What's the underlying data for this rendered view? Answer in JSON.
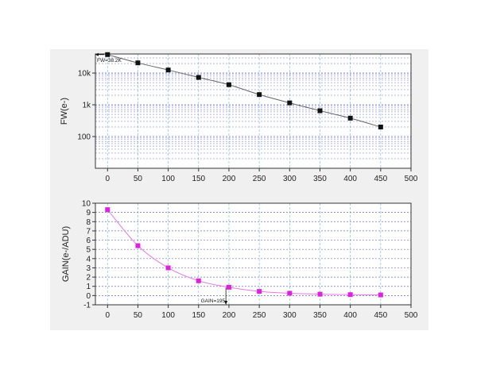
{
  "chart_data": [
    {
      "type": "line",
      "scale": "log",
      "ylabel": "FW(e-)",
      "xlabel": "",
      "xlim": [
        -20,
        500
      ],
      "ylim": [
        10,
        40000
      ],
      "x_ticks": [
        0,
        50,
        100,
        150,
        200,
        250,
        300,
        350,
        400,
        450,
        500
      ],
      "x_tick_labels": [
        "0",
        "50",
        "100",
        "150",
        "200",
        "250",
        "300",
        "350",
        "400",
        "450",
        "500"
      ],
      "y_ticks": [
        100,
        1000,
        10000
      ],
      "y_tick_labels": [
        "100",
        "1k",
        "10k"
      ],
      "grid": true,
      "colors": {
        "marker": "#111111",
        "line": "#666666",
        "grid_x": "#7fc4d6",
        "grid_y": "#6f6fd0"
      },
      "x": [
        0,
        50,
        100,
        150,
        200,
        250,
        300,
        350,
        400,
        450
      ],
      "y": [
        38200,
        21000,
        12500,
        7300,
        4300,
        2100,
        1150,
        650,
        380,
        200
      ],
      "annotation": {
        "text": "FW=38.2K",
        "x": 0,
        "y": 38200
      }
    },
    {
      "type": "line",
      "scale": "linear",
      "ylabel": "GAIN(e-/ADU)",
      "xlabel": "",
      "xlim": [
        -20,
        500
      ],
      "ylim": [
        -1,
        10
      ],
      "x_ticks": [
        0,
        50,
        100,
        150,
        200,
        250,
        300,
        350,
        400,
        450,
        500
      ],
      "x_tick_labels": [
        "0",
        "50",
        "100",
        "150",
        "200",
        "250",
        "300",
        "350",
        "400",
        "450",
        "500"
      ],
      "y_ticks": [
        -1,
        0,
        1,
        2,
        3,
        4,
        5,
        6,
        7,
        8,
        9,
        10
      ],
      "y_tick_labels": [
        "-1",
        "0",
        "1",
        "2",
        "3",
        "4",
        "5",
        "6",
        "7",
        "8",
        "9",
        "10"
      ],
      "grid": true,
      "colors": {
        "marker": "#e020e0",
        "line": "#e878e8",
        "grid_x": "#7fc4d6",
        "grid_y": "#6f6fd0"
      },
      "x": [
        0,
        50,
        100,
        150,
        200,
        250,
        300,
        350,
        400,
        450
      ],
      "y": [
        9.3,
        5.4,
        3.0,
        1.6,
        0.9,
        0.45,
        0.25,
        0.15,
        0.1,
        0.07
      ],
      "annotation": {
        "text": "GAIN=195",
        "x": 195,
        "y": 0.88
      }
    }
  ]
}
